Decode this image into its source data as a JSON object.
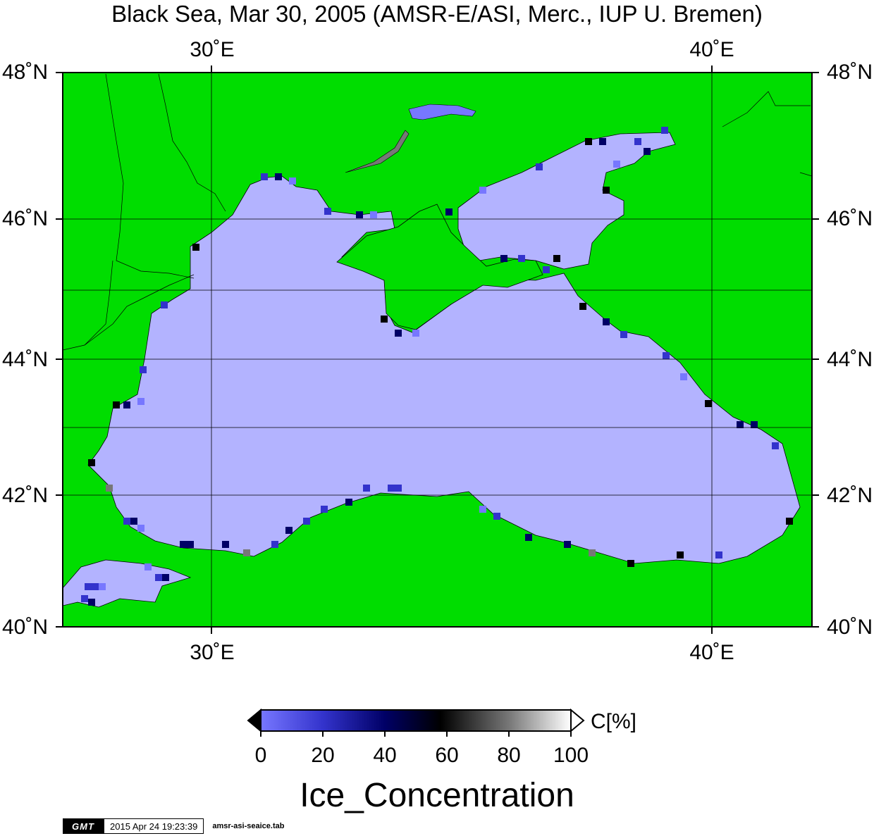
{
  "title": "Black Sea, Mar 30, 2005 (AMSR-E/ASI, Merc., IUP U. Bremen)",
  "map": {
    "lon_range": [
      27,
      42
    ],
    "lat_range": [
      40,
      48
    ],
    "lon_ticks": [
      "30˚E",
      "40˚E"
    ],
    "lat_ticks": [
      "48˚N",
      "46˚N",
      "44˚N",
      "42˚N",
      "40˚N"
    ],
    "colors": {
      "land": "#00dd00",
      "sea": "#b3b3ff",
      "grid": "#000000"
    }
  },
  "colorbar": {
    "labels": [
      "0",
      "20",
      "40",
      "60",
      "80",
      "100"
    ],
    "unit": "C[%]",
    "title": "Ice_Concentration",
    "stops": [
      "#7777ff",
      "#3333cc",
      "#000066",
      "#000000",
      "#777777",
      "#ffffff"
    ]
  },
  "stamp": {
    "logo": "GMT",
    "date": "2015 Apr 24 19:23:39",
    "file": "amsr-asi-seaice.tab"
  }
}
